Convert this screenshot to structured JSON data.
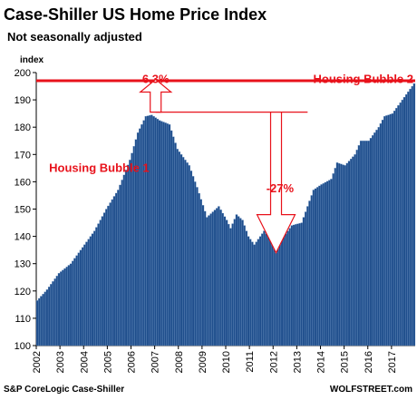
{
  "chart_data": {
    "type": "bar",
    "title": "Case-Shiller US Home Price Index",
    "subtitle": "Not seasonally adjusted",
    "ylabel": "index",
    "ylim": [
      100,
      200
    ],
    "yticks": [
      100,
      110,
      120,
      130,
      140,
      150,
      160,
      170,
      180,
      190,
      200
    ],
    "x_start": "2002-01",
    "x_end": "2017-12",
    "xticks": [
      "2002",
      "2003",
      "2004",
      "2005",
      "2006",
      "2007",
      "2008",
      "2009",
      "2010",
      "2011",
      "2012",
      "2013",
      "2014",
      "2015",
      "2016",
      "2017"
    ],
    "series": [
      {
        "color": "#1f4e8c",
        "frequency": "monthly",
        "anchors": [
          [
            "2002-01",
            116.5
          ],
          [
            "2002-06",
            120.5
          ],
          [
            "2002-12",
            126.5
          ],
          [
            "2003-06",
            130
          ],
          [
            "2003-12",
            136
          ],
          [
            "2004-06",
            142
          ],
          [
            "2004-12",
            150
          ],
          [
            "2005-06",
            157
          ],
          [
            "2005-12",
            168
          ],
          [
            "2006-04",
            178
          ],
          [
            "2006-08",
            184
          ],
          [
            "2006-11",
            184.5
          ],
          [
            "2007-03",
            182.5
          ],
          [
            "2007-08",
            181
          ],
          [
            "2007-12",
            172
          ],
          [
            "2008-06",
            166
          ],
          [
            "2008-10",
            158
          ],
          [
            "2009-03",
            147
          ],
          [
            "2009-06",
            149
          ],
          [
            "2009-09",
            151
          ],
          [
            "2010-01",
            146
          ],
          [
            "2010-03",
            143
          ],
          [
            "2010-06",
            148
          ],
          [
            "2010-09",
            146
          ],
          [
            "2010-12",
            140
          ],
          [
            "2011-03",
            137
          ],
          [
            "2011-08",
            142
          ],
          [
            "2011-11",
            139
          ],
          [
            "2012-02",
            134
          ],
          [
            "2012-06",
            140
          ],
          [
            "2012-10",
            144
          ],
          [
            "2013-03",
            145
          ],
          [
            "2013-06",
            151
          ],
          [
            "2013-09",
            157
          ],
          [
            "2014-01",
            159
          ],
          [
            "2014-06",
            161
          ],
          [
            "2014-09",
            167
          ],
          [
            "2015-01",
            166
          ],
          [
            "2015-06",
            170
          ],
          [
            "2015-09",
            175
          ],
          [
            "2016-01",
            175
          ],
          [
            "2016-06",
            180
          ],
          [
            "2016-09",
            184
          ],
          [
            "2017-01",
            185
          ],
          [
            "2017-06",
            190
          ],
          [
            "2017-12",
            196
          ]
        ]
      }
    ],
    "annotations": [
      {
        "text": "6.3%",
        "label_x": "2007-01",
        "label_y": 197.5
      },
      {
        "text": "Housing Bubble 2",
        "label_x": "2015-11",
        "label_y": 197.5
      },
      {
        "text": "Housing Bubble 1",
        "label_x": "2002-07",
        "label_y": 165
      },
      {
        "text": "-27%",
        "label_x": "2012-04",
        "label_y": 157.5
      }
    ],
    "reference_line": {
      "y": 197,
      "color": "#e8121b"
    },
    "upper_bracket": {
      "y": 185.5,
      "x_from": "2007-01",
      "x_to": "2013-06"
    },
    "up_arrow": {
      "x": "2007-01",
      "from_y": 185.5,
      "to_y": 197.5
    },
    "down_arrow": {
      "x": "2012-02",
      "from_y": 185.5,
      "to_y": 134
    },
    "grid": false,
    "legend": "none"
  },
  "source": "S&P CoreLogic Case-Shiller",
  "brand": "WOLFSTREET.com",
  "colors": {
    "bars": "#1f4e8c",
    "annotation": "#e8121b"
  }
}
